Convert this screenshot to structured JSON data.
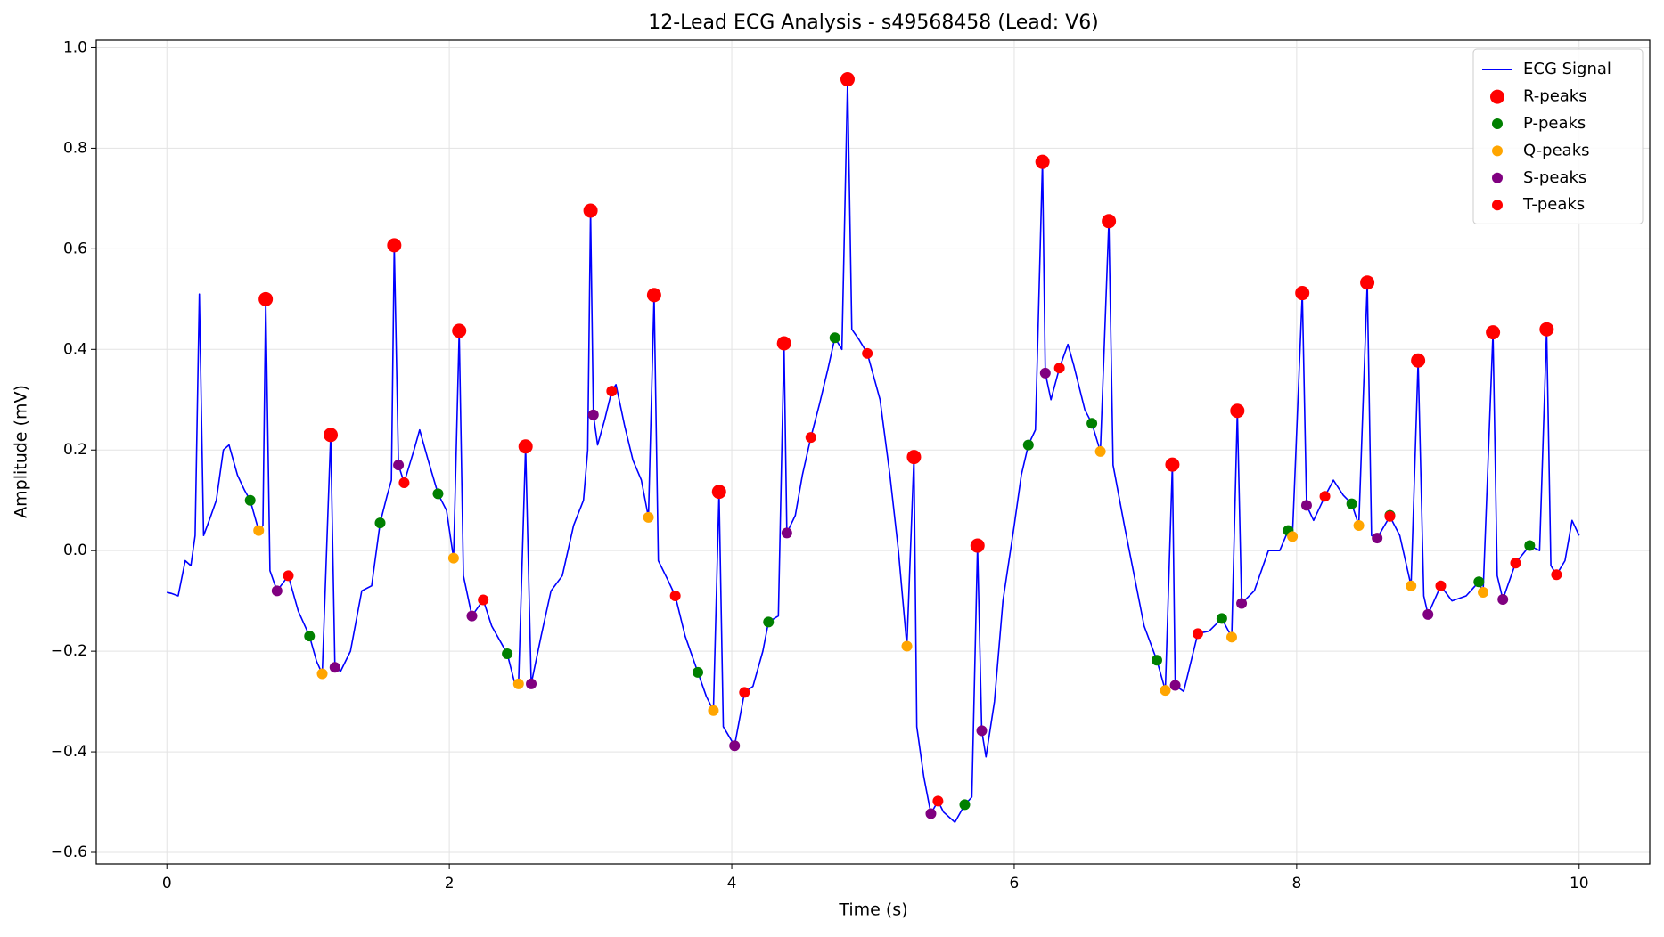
{
  "chart_data": {
    "type": "line",
    "title": "12-Lead ECG Analysis - s49568458 (Lead: V6)",
    "x_label": "Time (s)",
    "y_label": "Amplitude (mV)",
    "xlim": [
      -0.5,
      10.5
    ],
    "ylim": [
      -0.623,
      1.015
    ],
    "xticks": [
      0,
      2,
      4,
      6,
      8,
      10
    ],
    "yticks": [
      {
        "value": -0.6,
        "label": "−0.6"
      },
      {
        "value": -0.4,
        "label": "−0.4"
      },
      {
        "value": -0.2,
        "label": "−0.2"
      },
      {
        "value": 0,
        "label": "0.0"
      },
      0.2,
      0.4,
      0.6,
      0.8,
      {
        "value": 1,
        "label": "1.0"
      }
    ],
    "grid": true,
    "legend": "upper right",
    "series": [
      {
        "name": "ECG Signal",
        "kind": "line",
        "color": "#0000ff",
        "x": [
          0,
          0.03,
          0.08,
          0.13,
          0.17,
          0.2,
          0.23,
          0.26,
          0.3,
          0.35,
          0.4,
          0.44,
          0.5,
          0.55,
          0.59,
          0.65,
          0.68,
          0.7,
          0.73,
          0.78,
          0.86,
          0.93,
          1.01,
          1.06,
          1.1,
          1.16,
          1.19,
          1.23,
          1.3,
          1.38,
          1.45,
          1.51,
          1.56,
          1.59,
          1.61,
          1.64,
          1.68,
          1.75,
          1.79,
          1.85,
          1.92,
          1.98,
          2.03,
          2.07,
          2.1,
          2.16,
          2.24,
          2.3,
          2.41,
          2.46,
          2.49,
          2.54,
          2.58,
          2.65,
          2.72,
          2.8,
          2.88,
          2.95,
          2.98,
          3.0,
          3.02,
          3.05,
          3.1,
          3.15,
          3.18,
          3.24,
          3.3,
          3.36,
          3.41,
          3.45,
          3.48,
          3.55,
          3.6,
          3.67,
          3.76,
          3.82,
          3.87,
          3.91,
          3.94,
          4.02,
          4.09,
          4.15,
          4.22,
          4.26,
          4.33,
          4.37,
          4.39,
          4.45,
          4.5,
          4.56,
          4.62,
          4.68,
          4.73,
          4.78,
          4.82,
          4.85,
          4.9,
          4.96,
          5.05,
          5.12,
          5.18,
          5.24,
          5.29,
          5.31,
          5.36,
          5.41,
          5.46,
          5.5,
          5.58,
          5.65,
          5.7,
          5.74,
          5.77,
          5.8,
          5.86,
          5.92,
          6.0,
          6.05,
          6.1,
          6.15,
          6.2,
          6.22,
          6.26,
          6.32,
          6.38,
          6.42,
          6.5,
          6.55,
          6.61,
          6.67,
          6.7,
          6.78,
          6.85,
          6.92,
          7.01,
          7.07,
          7.12,
          7.14,
          7.2,
          7.3,
          7.38,
          7.47,
          7.54,
          7.58,
          7.61,
          7.7,
          7.8,
          7.88,
          7.94,
          7.97,
          8.04,
          8.07,
          8.12,
          8.2,
          8.26,
          8.33,
          8.39,
          8.44,
          8.5,
          8.53,
          8.57,
          8.66,
          8.73,
          8.81,
          8.86,
          8.9,
          8.93,
          9.02,
          9.1,
          9.2,
          9.29,
          9.32,
          9.39,
          9.42,
          9.46,
          9.55,
          9.65,
          9.72,
          9.77,
          9.8,
          9.84,
          9.9,
          9.95,
          10.0
        ],
        "values": [
          -0.083,
          -0.085,
          -0.09,
          -0.02,
          -0.03,
          0.03,
          0.51,
          0.03,
          0.06,
          0.1,
          0.2,
          0.21,
          0.15,
          0.12,
          0.1,
          0.04,
          0.05,
          0.5,
          -0.04,
          -0.08,
          -0.05,
          -0.12,
          -0.17,
          -0.22,
          -0.245,
          0.23,
          -0.232,
          -0.24,
          -0.2,
          -0.08,
          -0.07,
          0.055,
          0.11,
          0.14,
          0.607,
          0.17,
          0.135,
          0.2,
          0.24,
          0.18,
          0.113,
          0.08,
          -0.015,
          0.437,
          -0.05,
          -0.13,
          -0.098,
          -0.15,
          -0.205,
          -0.26,
          -0.265,
          0.207,
          -0.265,
          -0.17,
          -0.08,
          -0.05,
          0.05,
          0.1,
          0.2,
          0.676,
          0.27,
          0.21,
          0.26,
          0.317,
          0.33,
          0.25,
          0.18,
          0.14,
          0.066,
          0.508,
          -0.02,
          -0.06,
          -0.09,
          -0.17,
          -0.242,
          -0.29,
          -0.318,
          0.117,
          -0.35,
          -0.388,
          -0.282,
          -0.27,
          -0.2,
          -0.142,
          -0.13,
          0.412,
          0.035,
          0.07,
          0.15,
          0.225,
          0.29,
          0.36,
          0.423,
          0.4,
          0.937,
          0.44,
          0.42,
          0.392,
          0.3,
          0.15,
          0.0,
          -0.19,
          0.186,
          -0.35,
          -0.45,
          -0.523,
          -0.498,
          -0.52,
          -0.54,
          -0.505,
          -0.49,
          0.01,
          -0.358,
          -0.41,
          -0.3,
          -0.1,
          0.05,
          0.15,
          0.21,
          0.24,
          0.773,
          0.353,
          0.3,
          0.363,
          0.41,
          0.37,
          0.28,
          0.253,
          0.197,
          0.655,
          0.17,
          0.05,
          -0.05,
          -0.15,
          -0.218,
          -0.278,
          0.171,
          -0.268,
          -0.28,
          -0.165,
          -0.16,
          -0.135,
          -0.172,
          0.278,
          -0.105,
          -0.08,
          0.0,
          0.0,
          0.04,
          0.028,
          0.512,
          0.09,
          0.06,
          0.108,
          0.14,
          0.11,
          0.093,
          0.05,
          0.533,
          0.03,
          0.025,
          0.068,
          0.03,
          -0.07,
          0.378,
          -0.09,
          -0.127,
          -0.07,
          -0.1,
          -0.09,
          -0.062,
          -0.083,
          0.434,
          -0.05,
          -0.097,
          -0.025,
          0.01,
          0.0,
          0.44,
          -0.03,
          -0.048,
          -0.02,
          0.06,
          0.03
        ]
      },
      {
        "name": "R-peaks",
        "kind": "scatter",
        "color": "#ff0000",
        "marker_size": 8,
        "x": [
          0.7,
          1.16,
          1.61,
          2.07,
          2.54,
          3.0,
          3.45,
          3.91,
          4.37,
          4.82,
          5.29,
          5.74,
          6.2,
          6.67,
          7.12,
          7.58,
          8.04,
          8.5,
          8.86,
          9.39,
          9.77
        ],
        "values": [
          0.5,
          0.23,
          0.607,
          0.437,
          0.207,
          0.676,
          0.508,
          0.117,
          0.412,
          0.937,
          0.186,
          0.01,
          0.773,
          0.655,
          0.171,
          0.278,
          0.512,
          0.533,
          0.378,
          0.434,
          0.44
        ]
      },
      {
        "name": "P-peaks",
        "kind": "scatter",
        "color": "#008000",
        "marker_size": 6,
        "x": [
          0.59,
          1.01,
          1.51,
          1.92,
          2.41,
          3.76,
          4.26,
          4.73,
          5.65,
          6.1,
          6.55,
          7.01,
          7.47,
          7.94,
          8.39,
          8.66,
          9.29,
          9.65
        ],
        "values": [
          0.1,
          -0.17,
          0.055,
          0.113,
          -0.205,
          -0.242,
          -0.142,
          0.423,
          -0.505,
          0.21,
          0.253,
          -0.218,
          -0.135,
          0.04,
          0.093,
          0.07,
          -0.062,
          0.01
        ]
      },
      {
        "name": "Q-peaks",
        "kind": "scatter",
        "color": "#ffa500",
        "marker_size": 6,
        "x": [
          0.65,
          1.1,
          2.03,
          2.49,
          3.41,
          3.87,
          5.24,
          6.61,
          7.07,
          7.54,
          7.97,
          8.44,
          8.81,
          9.32
        ],
        "values": [
          0.04,
          -0.245,
          -0.015,
          -0.265,
          0.066,
          -0.318,
          -0.19,
          0.197,
          -0.278,
          -0.172,
          0.028,
          0.05,
          -0.07,
          -0.083
        ]
      },
      {
        "name": "S-peaks",
        "kind": "scatter",
        "color": "#800080",
        "marker_size": 6,
        "x": [
          0.78,
          1.19,
          1.64,
          2.16,
          2.58,
          3.02,
          4.02,
          4.39,
          5.41,
          5.77,
          6.22,
          7.14,
          7.61,
          8.07,
          8.57,
          8.93,
          9.46
        ],
        "values": [
          -0.08,
          -0.232,
          0.17,
          -0.13,
          -0.265,
          0.27,
          -0.388,
          0.035,
          -0.523,
          -0.358,
          0.353,
          -0.268,
          -0.105,
          0.09,
          0.025,
          -0.127,
          -0.097
        ]
      },
      {
        "name": "T-peaks",
        "kind": "scatter",
        "color": "#ff0000",
        "marker_size": 6,
        "x": [
          0.86,
          1.68,
          2.24,
          3.15,
          3.6,
          4.09,
          4.56,
          4.96,
          5.46,
          6.32,
          7.3,
          8.2,
          8.66,
          9.02,
          9.55,
          9.84
        ],
        "values": [
          -0.05,
          0.135,
          -0.098,
          0.317,
          -0.09,
          -0.282,
          0.225,
          0.392,
          -0.498,
          0.363,
          -0.165,
          0.108,
          0.068,
          -0.07,
          -0.025,
          -0.048
        ]
      }
    ]
  }
}
